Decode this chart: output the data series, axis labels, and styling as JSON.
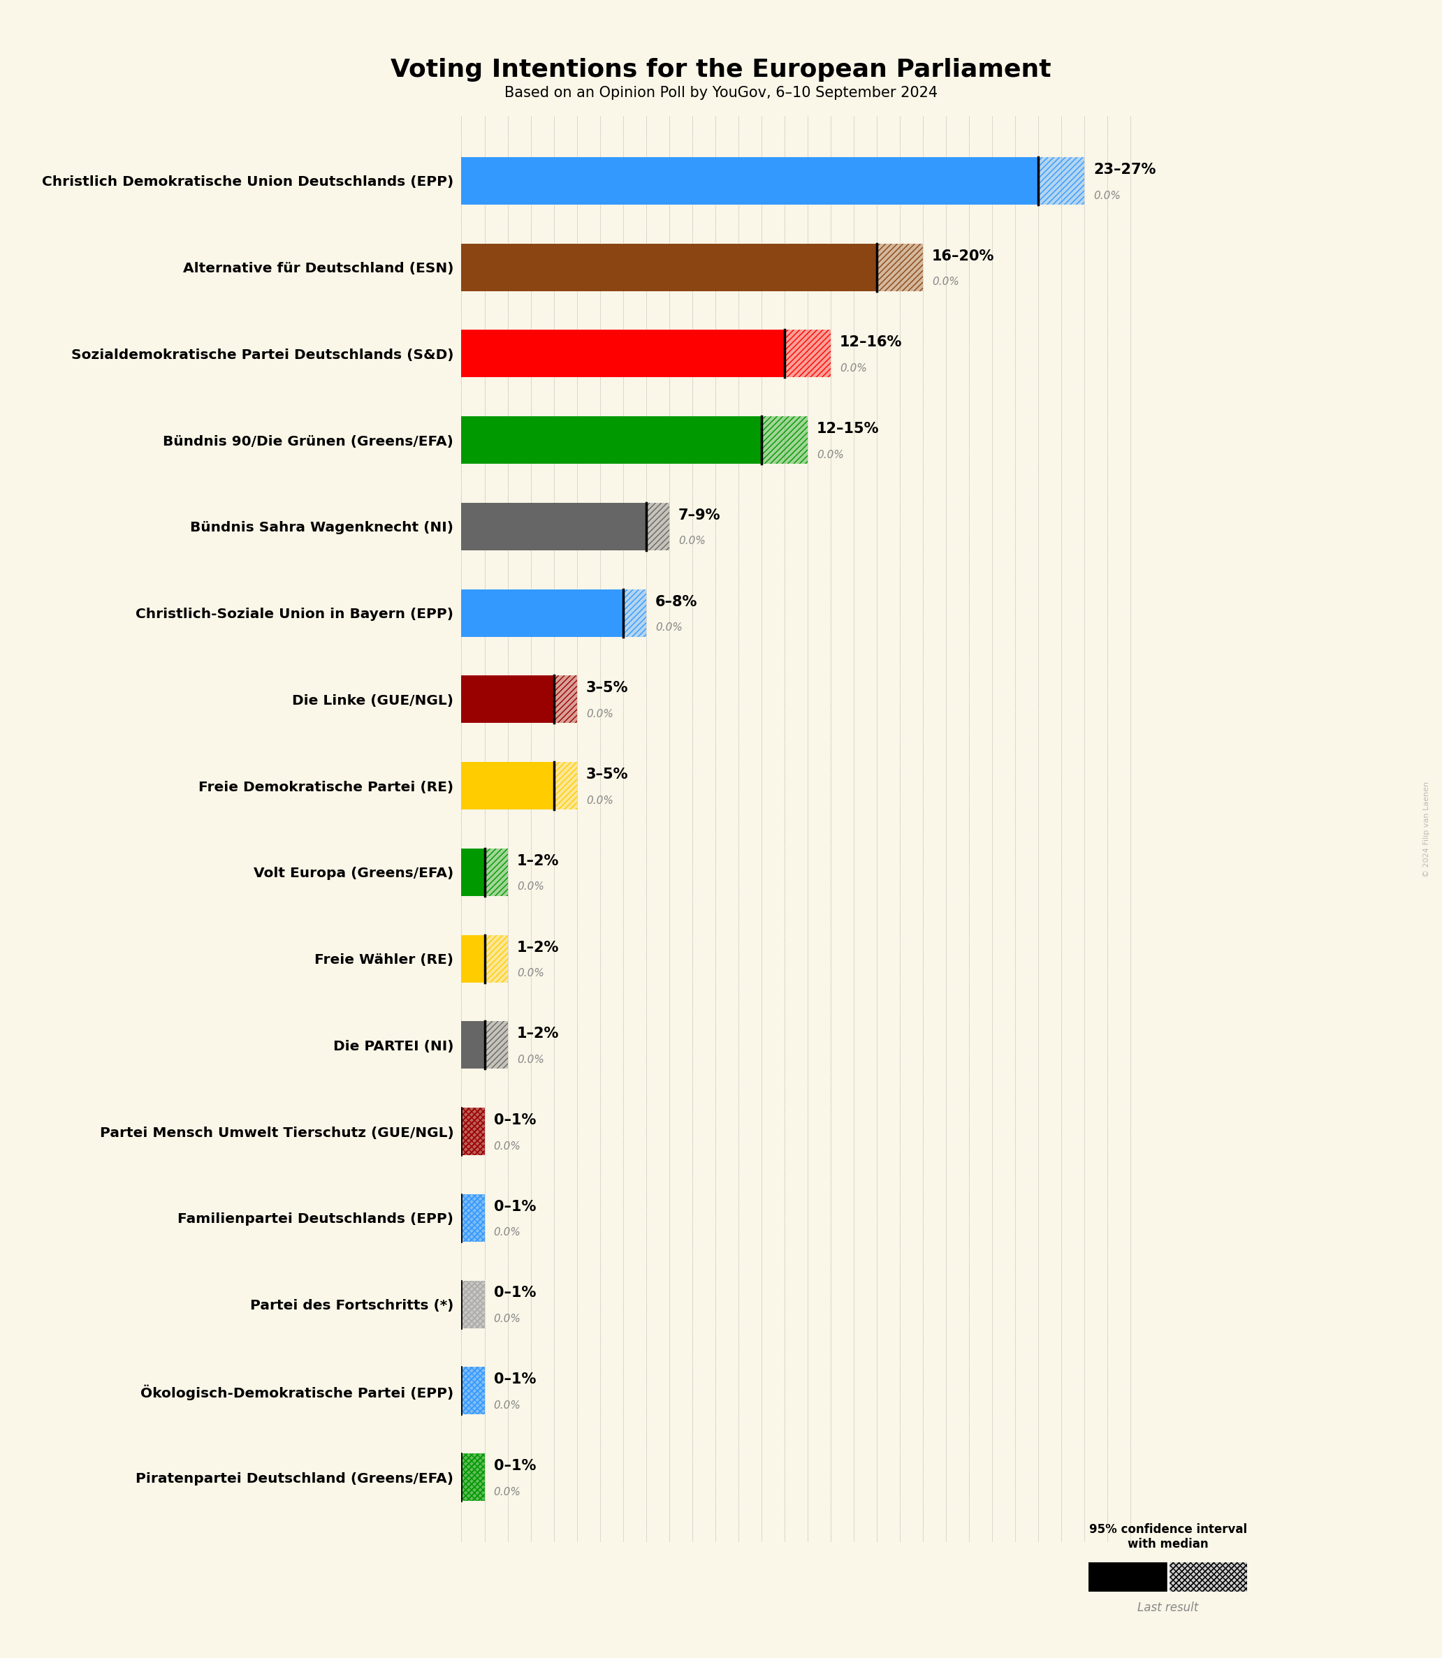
{
  "title": "Voting Intentions for the European Parliament",
  "subtitle": "Based on an Opinion Poll by YouGov, 6–10 September 2024",
  "background_color": "#faf6e8",
  "parties": [
    {
      "name": "Christlich Demokratische Union Deutschlands (EPP)",
      "low": 23,
      "high": 27,
      "median": 25,
      "last": 0.0,
      "color": "#3399ff"
    },
    {
      "name": "Alternative für Deutschland (ESN)",
      "low": 16,
      "high": 20,
      "median": 18,
      "last": 0.0,
      "color": "#8b4513"
    },
    {
      "name": "Sozialdemokratische Partei Deutschlands (S&D)",
      "low": 12,
      "high": 16,
      "median": 14,
      "last": 0.0,
      "color": "#ff0000"
    },
    {
      "name": "Bündnis 90/Die Grünen (Greens/EFA)",
      "low": 12,
      "high": 15,
      "median": 13,
      "last": 0.0,
      "color": "#009900"
    },
    {
      "name": "Bündnis Sahra Wagenknecht (NI)",
      "low": 7,
      "high": 9,
      "median": 8,
      "last": 0.0,
      "color": "#666666"
    },
    {
      "name": "Christlich-Soziale Union in Bayern (EPP)",
      "low": 6,
      "high": 8,
      "median": 7,
      "last": 0.0,
      "color": "#3399ff"
    },
    {
      "name": "Die Linke (GUE/NGL)",
      "low": 3,
      "high": 5,
      "median": 4,
      "last": 0.0,
      "color": "#990000"
    },
    {
      "name": "Freie Demokratische Partei (RE)",
      "low": 3,
      "high": 5,
      "median": 4,
      "last": 0.0,
      "color": "#ffcc00"
    },
    {
      "name": "Volt Europa (Greens/EFA)",
      "low": 1,
      "high": 2,
      "median": 1,
      "last": 0.0,
      "color": "#009900"
    },
    {
      "name": "Freie Wähler (RE)",
      "low": 1,
      "high": 2,
      "median": 1,
      "last": 0.0,
      "color": "#ffcc00"
    },
    {
      "name": "Die PARTEI (NI)",
      "low": 1,
      "high": 2,
      "median": 1,
      "last": 0.0,
      "color": "#666666"
    },
    {
      "name": "Partei Mensch Umwelt Tierschutz (GUE/NGL)",
      "low": 0,
      "high": 1,
      "median": 0,
      "last": 0.0,
      "color": "#990000"
    },
    {
      "name": "Familienpartei Deutschlands (EPP)",
      "low": 0,
      "high": 1,
      "median": 0,
      "last": 0.0,
      "color": "#3399ff"
    },
    {
      "name": "Partei des Fortschritts (*)",
      "low": 0,
      "high": 1,
      "median": 0,
      "last": 0.0,
      "color": "#aaaaaa"
    },
    {
      "Ökologisch-Demokratische Partei (EPP)": null,
      "name": "Ökologisch-Demokratische Partei (EPP)",
      "low": 0,
      "high": 1,
      "median": 0,
      "last": 0.0,
      "color": "#3399ff"
    },
    {
      "name": "Piratenpartei Deutschland (Greens/EFA)",
      "low": 0,
      "high": 1,
      "median": 0,
      "last": 0.0,
      "color": "#009900"
    }
  ],
  "xlim_max": 30,
  "bar_height": 0.55
}
